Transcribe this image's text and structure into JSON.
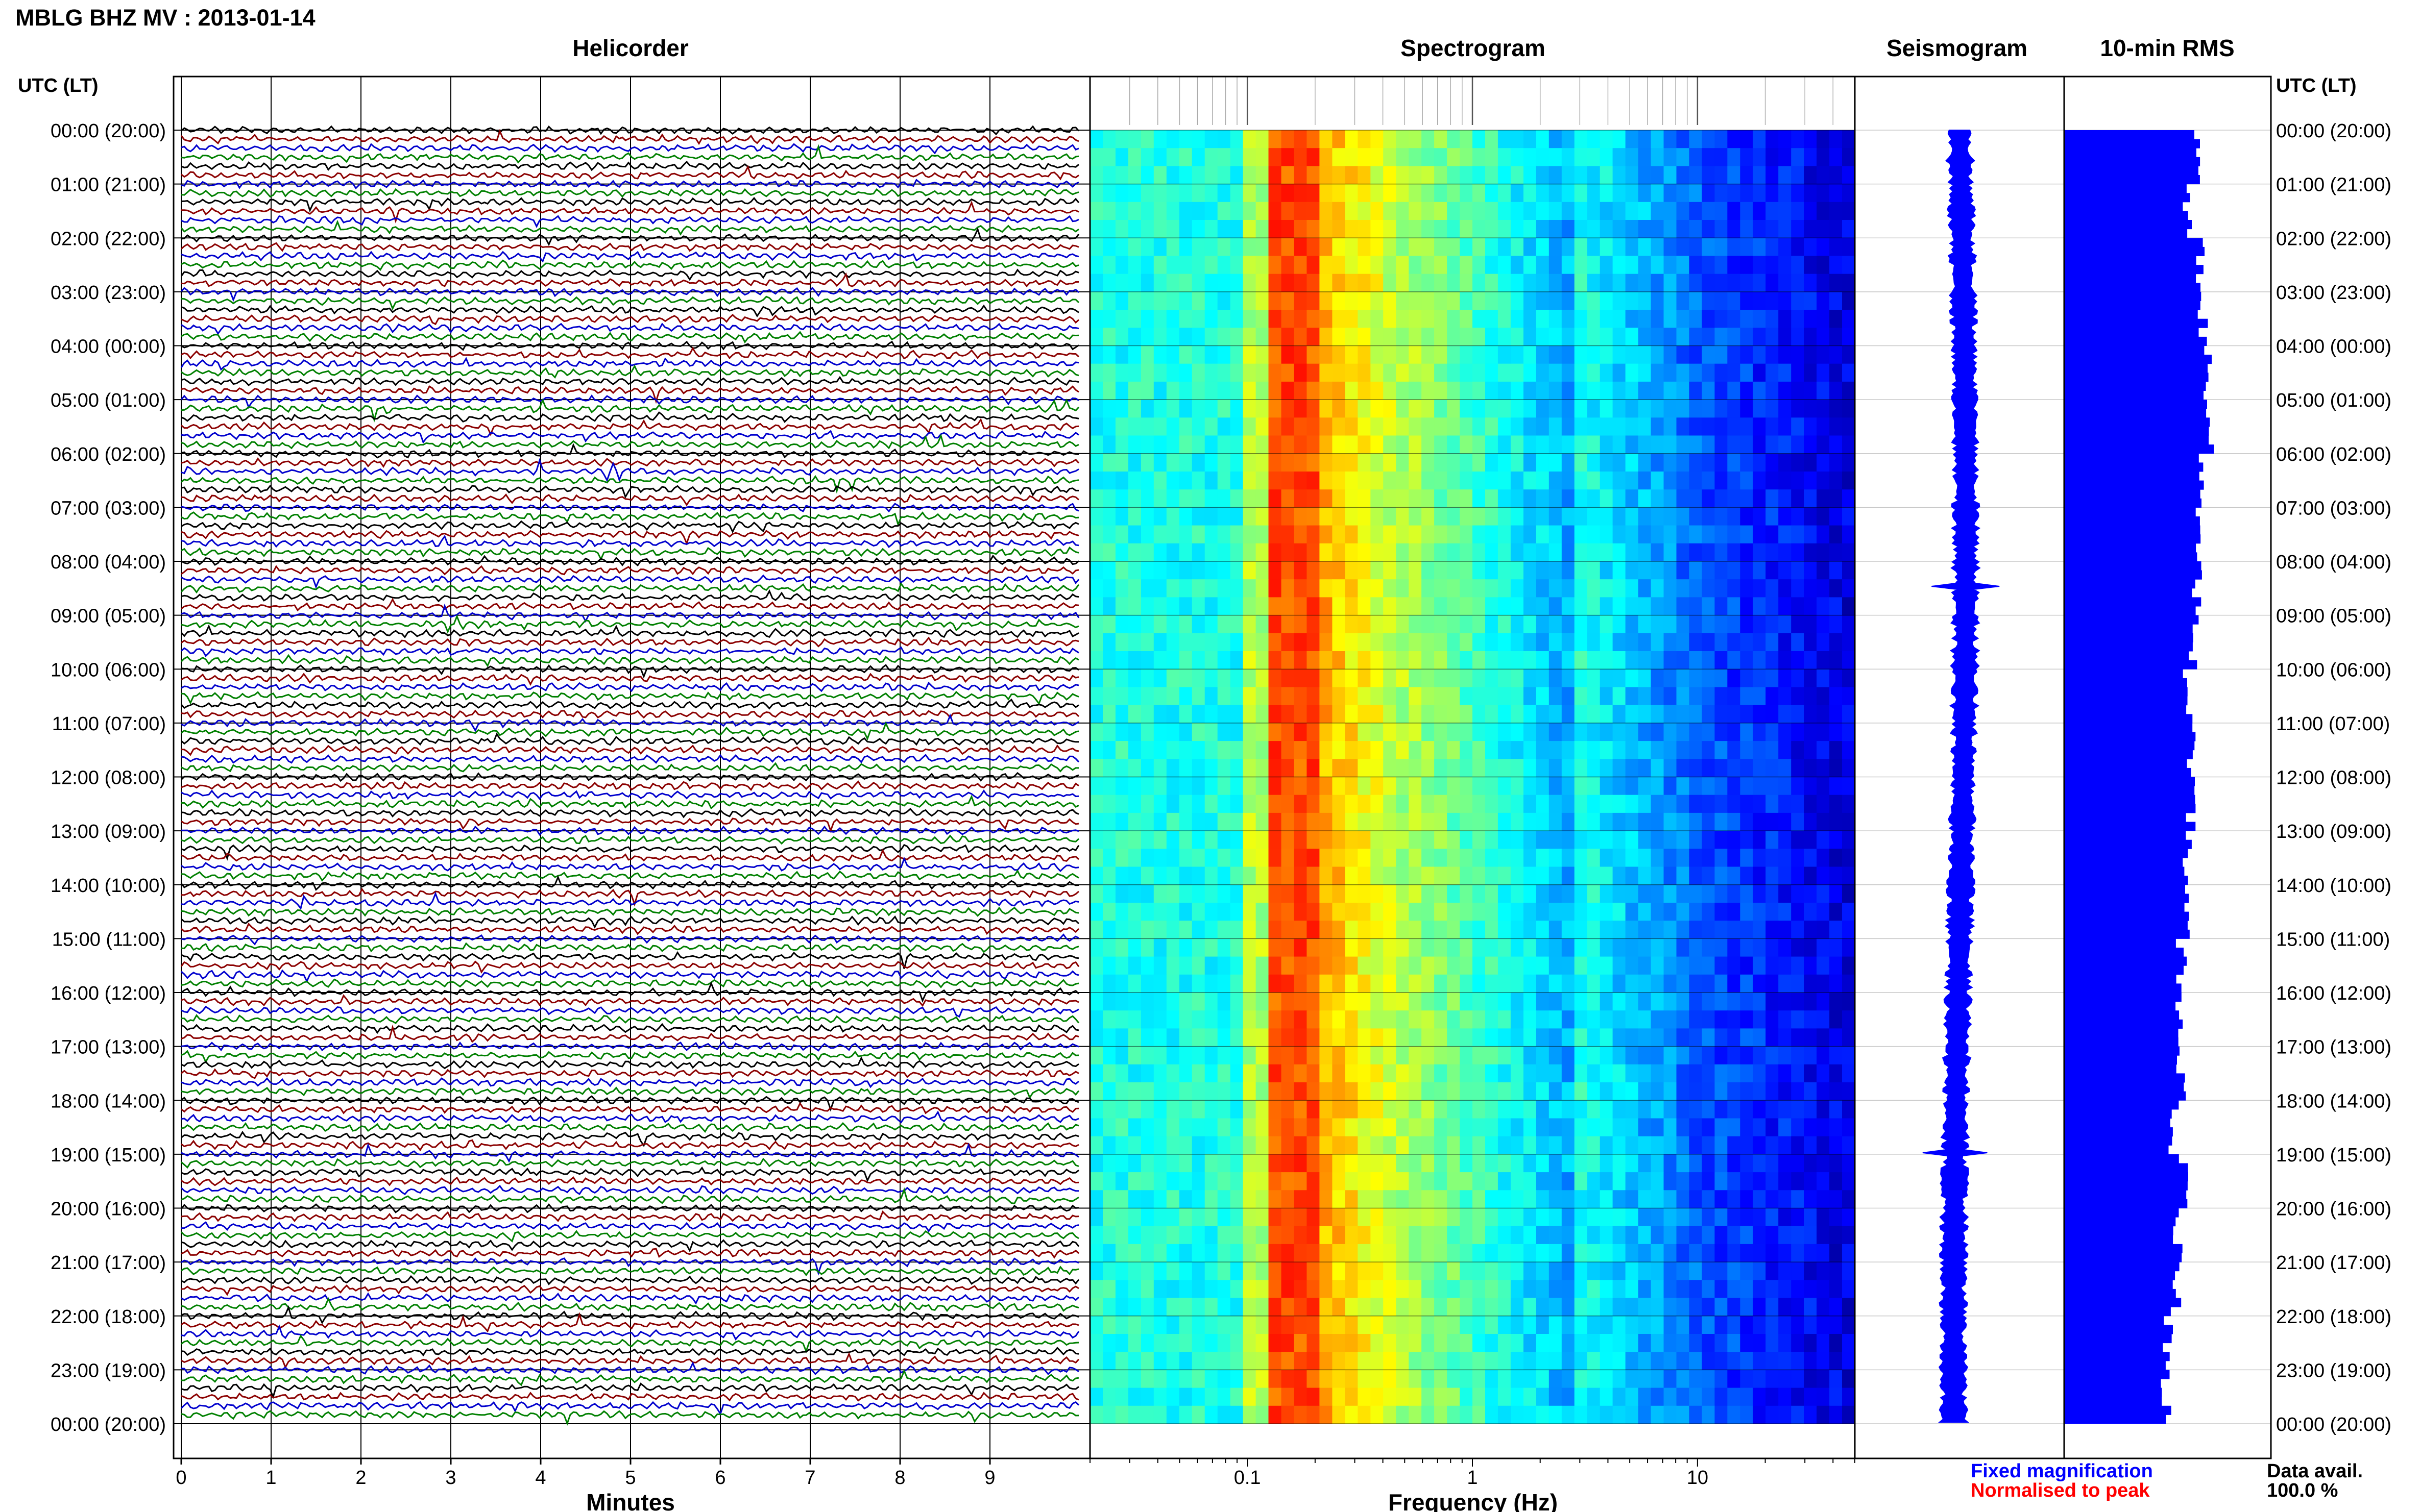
{
  "header": {
    "title": "MBLG BHZ MV : 2013-01-14"
  },
  "panels": {
    "helicorder": "Helicorder",
    "spectrogram": "Spectrogram",
    "seismogram": "Seismogram",
    "rms": "10-min RMS"
  },
  "axes": {
    "left_label": "UTC (LT)",
    "right_label": "UTC (LT)",
    "minutes_label": "Minutes",
    "frequency_label": "Frequency (Hz)",
    "minute_ticks": [
      "0",
      "1",
      "2",
      "3",
      "4",
      "5",
      "6",
      "7",
      "8",
      "9"
    ],
    "frequency_ticks": [
      "0.1",
      "1",
      "10"
    ],
    "hour_labels": [
      "00:00 (20:00)",
      "01:00 (21:00)",
      "02:00 (22:00)",
      "03:00 (23:00)",
      "04:00 (00:00)",
      "05:00 (01:00)",
      "06:00 (02:00)",
      "07:00 (03:00)",
      "08:00 (04:00)",
      "09:00 (05:00)",
      "10:00 (06:00)",
      "11:00 (07:00)",
      "12:00 (08:00)",
      "13:00 (09:00)",
      "14:00 (10:00)",
      "15:00 (11:00)",
      "16:00 (12:00)",
      "17:00 (13:00)",
      "18:00 (14:00)",
      "19:00 (15:00)",
      "20:00 (16:00)",
      "21:00 (17:00)",
      "22:00 (18:00)",
      "23:00 (19:00)",
      "00:00 (20:00)"
    ]
  },
  "legend": {
    "fixed": "Fixed magnification",
    "normalised": "Normalised to peak",
    "fixed_color": "#0000ff",
    "normalised_color": "#ff0000"
  },
  "availability": {
    "label": "Data avail.",
    "value": "100.0 %"
  },
  "colors": {
    "trace_cycle": [
      "#000000",
      "#8b0000",
      "#0000cd",
      "#008000"
    ],
    "rms_fill": "#0000ff",
    "seismogram": "#0000ff"
  },
  "chart_data": {
    "type": "heatmap",
    "title": "MBLG BHZ MV : 2013-01-14",
    "helicorder": {
      "minutes_per_line": 10,
      "lines": 144,
      "xlabel": "Minutes",
      "xlim": [
        0,
        10
      ]
    },
    "spectrogram": {
      "xlabel": "Frequency (Hz)",
      "xscale": "log",
      "xlim": [
        0.02,
        50
      ],
      "peak_band_hz": [
        0.12,
        0.2
      ],
      "colormap": "jet"
    },
    "rms_10min": {
      "hours": [
        0,
        1,
        2,
        3,
        4,
        5,
        6,
        7,
        8,
        9,
        10,
        11,
        12,
        13,
        14,
        15,
        16,
        17,
        18,
        19,
        20,
        21,
        22,
        23
      ],
      "relative_rms": [
        0.94,
        0.86,
        0.95,
        0.97,
        1.0,
        1.02,
        0.98,
        0.96,
        0.93,
        0.91,
        0.86,
        0.89,
        0.88,
        0.86,
        0.84,
        0.82,
        0.8,
        0.82,
        0.77,
        0.84,
        0.8,
        0.78,
        0.73,
        0.71
      ]
    }
  }
}
